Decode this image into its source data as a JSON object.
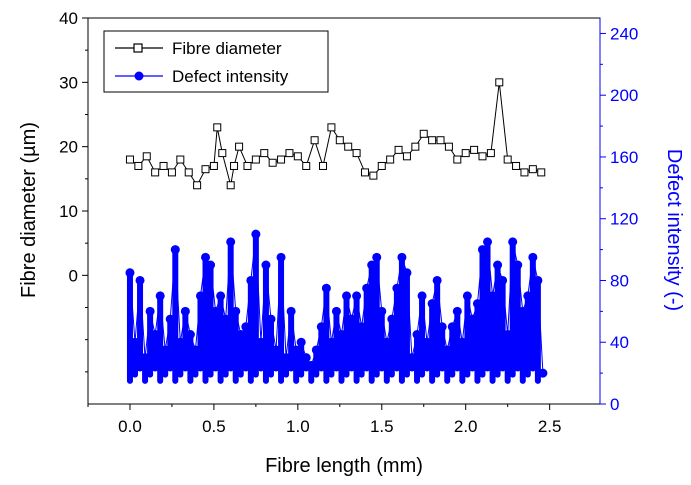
{
  "chart_data": {
    "type": "scatter",
    "title": "",
    "xlabel": "Fibre length (mm)",
    "ylabel": "Fibre diameter (µm)",
    "ylabel_right": "Defect intensity (-)",
    "xlim": [
      -0.25,
      2.8
    ],
    "ylim_left": [
      -20,
      40
    ],
    "ylim_right": [
      0,
      250
    ],
    "x_ticks": [
      "0.0",
      "0.5",
      "1.0",
      "1.5",
      "2.0",
      "2.5"
    ],
    "x_tick_values": [
      0,
      0.5,
      1.0,
      1.5,
      2.0,
      2.5
    ],
    "y_left_ticks": [
      "0",
      "10",
      "20",
      "30",
      "40"
    ],
    "y_left_tick_values": [
      0,
      10,
      20,
      30,
      40
    ],
    "y_right_ticks": [
      "0",
      "40",
      "80",
      "120",
      "160",
      "200",
      "240"
    ],
    "y_right_tick_values": [
      0,
      40,
      80,
      120,
      160,
      200,
      240
    ],
    "legend_position": "top-left",
    "grid": false,
    "colors": {
      "left_axis": "#000000",
      "right_axis": "#0000ff",
      "series1": "#000000",
      "series2": "#0000ff"
    },
    "series": [
      {
        "name": "Fibre diameter",
        "axis": "left",
        "marker": "open-square",
        "color": "#000000",
        "x": [
          0.0,
          0.05,
          0.1,
          0.15,
          0.2,
          0.25,
          0.3,
          0.35,
          0.4,
          0.45,
          0.5,
          0.52,
          0.55,
          0.6,
          0.62,
          0.65,
          0.7,
          0.75,
          0.8,
          0.85,
          0.9,
          0.95,
          1.0,
          1.05,
          1.1,
          1.15,
          1.2,
          1.25,
          1.3,
          1.35,
          1.4,
          1.45,
          1.5,
          1.55,
          1.6,
          1.65,
          1.7,
          1.75,
          1.8,
          1.85,
          1.9,
          1.95,
          2.0,
          2.05,
          2.1,
          2.15,
          2.2,
          2.25,
          2.3,
          2.35,
          2.4,
          2.45
        ],
        "y": [
          18,
          17,
          18.5,
          16,
          17,
          16,
          18,
          16,
          14,
          16.5,
          17,
          23,
          19,
          14,
          17,
          20,
          17,
          18,
          19,
          17.5,
          18,
          19,
          18.5,
          17,
          21,
          17,
          23,
          21,
          20,
          19,
          16,
          15.5,
          17,
          18,
          19.5,
          18.5,
          20,
          22,
          21,
          21,
          20,
          18,
          19,
          19.5,
          18.5,
          19,
          30,
          18,
          17,
          16,
          16.5,
          16
        ]
      },
      {
        "name": "Defect intensity",
        "axis": "right",
        "marker": "filled-circle",
        "color": "#0000ff",
        "x": [
          0.0,
          0.03,
          0.06,
          0.09,
          0.12,
          0.15,
          0.18,
          0.21,
          0.24,
          0.27,
          0.3,
          0.33,
          0.36,
          0.39,
          0.42,
          0.45,
          0.48,
          0.51,
          0.54,
          0.57,
          0.6,
          0.63,
          0.66,
          0.69,
          0.72,
          0.75,
          0.78,
          0.81,
          0.84,
          0.87,
          0.9,
          0.93,
          0.96,
          0.99,
          1.02,
          1.05,
          1.08,
          1.11,
          1.14,
          1.17,
          1.2,
          1.23,
          1.26,
          1.29,
          1.32,
          1.35,
          1.38,
          1.41,
          1.44,
          1.47,
          1.5,
          1.53,
          1.56,
          1.59,
          1.62,
          1.65,
          1.68,
          1.71,
          1.74,
          1.77,
          1.8,
          1.83,
          1.86,
          1.89,
          1.92,
          1.95,
          1.98,
          2.01,
          2.04,
          2.07,
          2.1,
          2.13,
          2.16,
          2.19,
          2.22,
          2.25,
          2.28,
          2.31,
          2.34,
          2.37,
          2.4,
          2.43,
          2.46
        ],
        "y": [
          85,
          40,
          80,
          30,
          60,
          45,
          70,
          35,
          55,
          100,
          40,
          60,
          45,
          35,
          70,
          95,
          90,
          60,
          70,
          55,
          105,
          60,
          45,
          50,
          80,
          110,
          40,
          90,
          55,
          35,
          95,
          30,
          60,
          35,
          40,
          30,
          25,
          35,
          50,
          75,
          40,
          60,
          45,
          70,
          55,
          70,
          50,
          75,
          90,
          95,
          60,
          40,
          55,
          75,
          95,
          85,
          30,
          45,
          70,
          40,
          65,
          80,
          50,
          35,
          50,
          60,
          40,
          70,
          55,
          65,
          100,
          105,
          70,
          90,
          80,
          45,
          105,
          90,
          60,
          70,
          95,
          80,
          20
        ]
      }
    ]
  }
}
